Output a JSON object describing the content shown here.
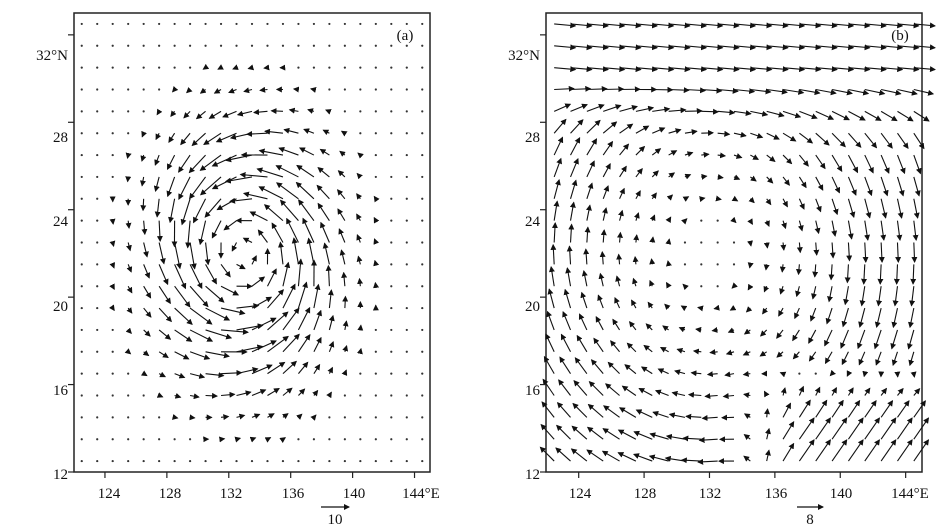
{
  "panels": [
    {
      "label": "(a)",
      "y_ticks": [
        "32°N",
        "28",
        "24",
        "20",
        "16",
        "12"
      ],
      "x_ticks": [
        "124",
        "128",
        "132",
        "136",
        "140",
        "144°E"
      ],
      "reference_vector_label": "10"
    },
    {
      "label": "(b)",
      "y_ticks": [
        "32°N",
        "28",
        "24",
        "20",
        "16",
        "12"
      ],
      "x_ticks": [
        "124",
        "128",
        "132",
        "136",
        "140",
        "144°E"
      ],
      "reference_vector_label": "8"
    }
  ],
  "chart_data": [
    {
      "type": "vector-field",
      "panel": "(a)",
      "x_range": [
        122,
        145
      ],
      "y_range": [
        12,
        33
      ],
      "x_ticks": [
        124,
        128,
        132,
        136,
        140,
        144
      ],
      "y_ticks": [
        12,
        16,
        20,
        24,
        28,
        32
      ],
      "grid_spacing": 1,
      "reference_vector": 10,
      "pattern": "cyclonic vortex",
      "vortex_center": [
        133,
        22
      ],
      "vortex_radius": 6,
      "peak_magnitude": 10
    },
    {
      "type": "vector-field",
      "panel": "(b)",
      "x_range": [
        122,
        145
      ],
      "y_range": [
        12,
        33
      ],
      "x_ticks": [
        124,
        128,
        132,
        136,
        140,
        144
      ],
      "y_ticks": [
        12,
        16,
        20,
        24,
        28,
        32
      ],
      "grid_spacing": 1,
      "reference_vector": 8,
      "pattern": "anticyclonic circulation with south-westerly inflow in the south-east",
      "circulation_center": [
        132,
        22
      ],
      "peak_magnitude": 8
    }
  ]
}
